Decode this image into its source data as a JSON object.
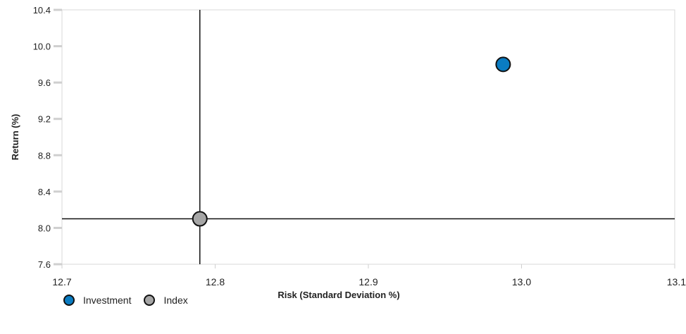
{
  "chart_data": {
    "type": "scatter",
    "title": "",
    "xlabel": "Risk (Standard Deviation %)",
    "ylabel": "Return (%)",
    "xlim": [
      12.7,
      13.1
    ],
    "ylim": [
      7.6,
      10.4
    ],
    "xticks": [
      "12.7",
      "12.8",
      "12.9",
      "13.0",
      "13.1"
    ],
    "yticks": [
      "7.6",
      "8.0",
      "8.4",
      "8.8",
      "9.2",
      "9.6",
      "10.0",
      "10.4"
    ],
    "series": [
      {
        "name": "Investment",
        "color": "#0a7cc2",
        "points": [
          {
            "x": 12.988,
            "y": 9.8
          }
        ]
      },
      {
        "name": "Index",
        "color": "#a6a6a6",
        "points": [
          {
            "x": 12.79,
            "y": 8.1
          }
        ]
      }
    ],
    "reference_lines": {
      "x": 12.79,
      "y": 8.1
    },
    "grid": false,
    "legend_position": "bottom-left"
  }
}
